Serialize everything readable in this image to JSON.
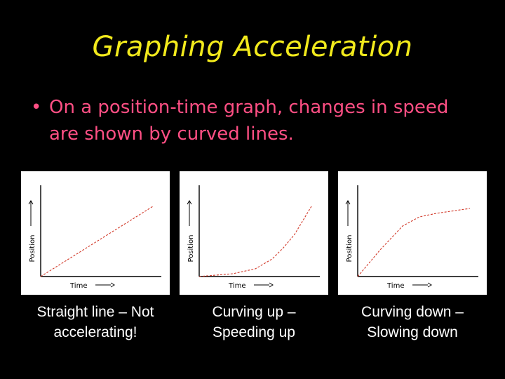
{
  "title": "Graphing Acceleration",
  "bullet": {
    "marker": "•",
    "text": "On a position-time graph, changes in speed are shown by curved lines."
  },
  "colors": {
    "background": "#000000",
    "title": "#f2ea1c",
    "bullet": "#ff4f84",
    "caption": "#ffffff",
    "panel": "#ffffff",
    "curve": "#d23a2a"
  },
  "chart_data": [
    {
      "type": "line",
      "shape": "straight",
      "xlabel": "Time",
      "ylabel": "Position",
      "x": [
        0,
        0.25,
        0.5,
        0.75,
        1
      ],
      "y": [
        0,
        0.25,
        0.5,
        0.75,
        1
      ],
      "caption_line1": "Straight line – Not",
      "caption_line2": "accelerating!"
    },
    {
      "type": "line",
      "shape": "curving-up",
      "xlabel": "Time",
      "ylabel": "Position",
      "x": [
        0,
        0.3,
        0.5,
        0.65,
        0.75,
        0.85,
        1
      ],
      "y": [
        0,
        0.04,
        0.11,
        0.25,
        0.41,
        0.6,
        1
      ],
      "caption_line1": "Curving up –",
      "caption_line2": "Speeding up"
    },
    {
      "type": "line",
      "shape": "curving-down",
      "xlabel": "Time",
      "ylabel": "Position",
      "x": [
        0,
        0.2,
        0.4,
        0.55,
        0.7,
        1
      ],
      "y": [
        0,
        0.38,
        0.72,
        0.85,
        0.9,
        0.97
      ],
      "caption_line1": "Curving down –",
      "caption_line2": "Slowing down"
    }
  ]
}
